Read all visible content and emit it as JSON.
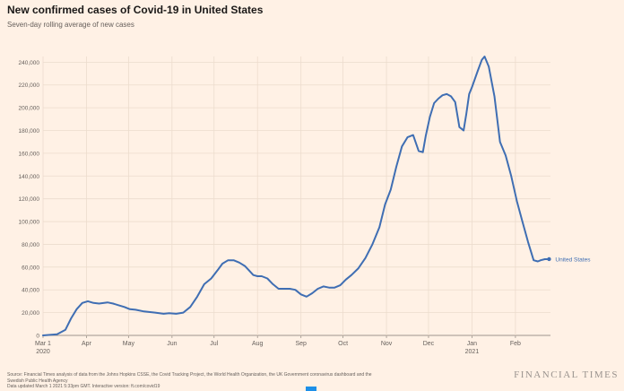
{
  "header": {
    "title": "New confirmed cases of Covid-19 in United States",
    "subtitle": "Seven-day rolling average of new cases"
  },
  "footer": {
    "source_line1": "Source: Financial Times analysis of data from the Johns Hopkins CSSE, the Covid Tracking Project, the World Health Organization, the UK Government coronavirus dashboard and the",
    "source_line2": "Swedish Public Health Agency",
    "source_line3": "Data updated March 1 2021 5:33pm GMT. Interactive version: ft.com/covid19",
    "logo": "FINANCIAL TIMES"
  },
  "colors": {
    "background": "#fff1e5",
    "line": "#3f6eb3",
    "grid": "#ecdccd"
  },
  "chart_data": {
    "type": "line",
    "title": "New confirmed cases of Covid-19 in United States",
    "subtitle": "Seven-day rolling average of new cases",
    "xlabel": "",
    "ylabel": "",
    "x_unit": "days since March 1 2020",
    "xlim": [
      0,
      362
    ],
    "ylim": [
      0,
      245000
    ],
    "yticks": [
      0,
      20000,
      40000,
      60000,
      80000,
      100000,
      120000,
      140000,
      160000,
      180000,
      200000,
      220000,
      240000
    ],
    "ytick_labels": [
      "0",
      "20,000",
      "40,000",
      "60,000",
      "80,000",
      "100,000",
      "120,000",
      "140,000",
      "160,000",
      "180,000",
      "200,000",
      "220,000",
      "240,000"
    ],
    "xticks": [
      {
        "label": "Mar 1",
        "sublabel": "2020",
        "day": 0
      },
      {
        "label": "Apr",
        "sublabel": "",
        "day": 31
      },
      {
        "label": "May",
        "sublabel": "",
        "day": 61
      },
      {
        "label": "Jun",
        "sublabel": "",
        "day": 92
      },
      {
        "label": "Jul",
        "sublabel": "",
        "day": 122
      },
      {
        "label": "Aug",
        "sublabel": "",
        "day": 153
      },
      {
        "label": "Sep",
        "sublabel": "",
        "day": 184
      },
      {
        "label": "Oct",
        "sublabel": "",
        "day": 214
      },
      {
        "label": "Nov",
        "sublabel": "",
        "day": 245
      },
      {
        "label": "Dec",
        "sublabel": "",
        "day": 275
      },
      {
        "label": "Jan",
        "sublabel": "2021",
        "day": 306
      },
      {
        "label": "Feb",
        "sublabel": "",
        "day": 337
      }
    ],
    "series": [
      {
        "name": "United States",
        "label": "United States",
        "x": [
          0,
          10,
          16,
          20,
          24,
          28,
          32,
          36,
          40,
          46,
          50,
          54,
          58,
          62,
          66,
          72,
          80,
          86,
          90,
          95,
          100,
          105,
          110,
          115,
          120,
          125,
          128,
          132,
          136,
          140,
          144,
          147,
          150,
          153,
          156,
          160,
          164,
          168,
          172,
          176,
          180,
          184,
          188,
          192,
          196,
          200,
          204,
          208,
          212,
          216,
          220,
          225,
          230,
          235,
          240,
          244,
          248,
          252,
          256,
          260,
          264,
          268,
          271,
          273,
          276,
          279,
          282,
          285,
          288,
          291,
          294,
          297,
          300,
          302,
          304,
          306,
          310,
          313,
          315,
          318,
          322,
          326,
          330,
          334,
          338,
          342,
          346,
          350,
          353,
          355,
          358,
          361
        ],
        "values": [
          0,
          1000,
          5000,
          15000,
          23000,
          28500,
          30000,
          28500,
          28000,
          29000,
          28000,
          26500,
          25000,
          23000,
          22500,
          21000,
          20000,
          19000,
          19500,
          19000,
          20000,
          25000,
          34000,
          45000,
          50000,
          58000,
          63000,
          66000,
          66000,
          64000,
          61000,
          57000,
          53000,
          52000,
          52000,
          50000,
          45000,
          41000,
          41000,
          41000,
          40000,
          36000,
          34000,
          37000,
          41000,
          43000,
          42000,
          42000,
          44000,
          49000,
          53000,
          59000,
          68000,
          80000,
          95000,
          115000,
          128000,
          148000,
          166000,
          174000,
          176000,
          162000,
          161000,
          175000,
          192000,
          204000,
          208000,
          211000,
          212000,
          210000,
          205000,
          183000,
          180000,
          195000,
          212000,
          218000,
          232000,
          242000,
          245000,
          236000,
          210000,
          170000,
          158000,
          140000,
          118000,
          100000,
          82000,
          66000,
          65000,
          66000,
          67000,
          67000
        ]
      }
    ]
  }
}
